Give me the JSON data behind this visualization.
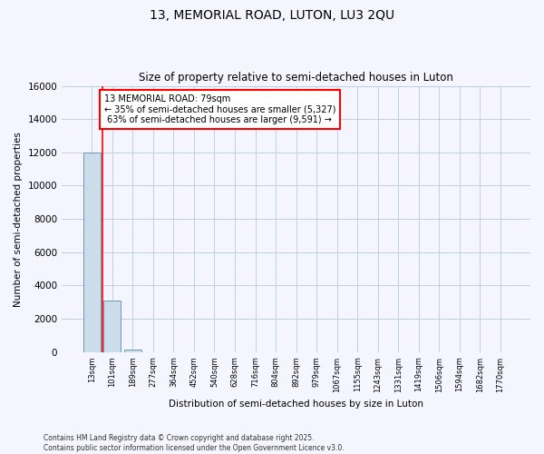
{
  "title": "13, MEMORIAL ROAD, LUTON, LU3 2QU",
  "subtitle": "Size of property relative to semi-detached houses in Luton",
  "xlabel": "Distribution of semi-detached houses by size in Luton",
  "ylabel": "Number of semi-detached properties",
  "categories": [
    "13sqm",
    "101sqm",
    "189sqm",
    "277sqm",
    "364sqm",
    "452sqm",
    "540sqm",
    "628sqm",
    "716sqm",
    "804sqm",
    "892sqm",
    "979sqm",
    "1067sqm",
    "1155sqm",
    "1243sqm",
    "1331sqm",
    "1419sqm",
    "1506sqm",
    "1594sqm",
    "1682sqm",
    "1770sqm"
  ],
  "values": [
    12000,
    3100,
    150,
    0,
    0,
    0,
    0,
    0,
    0,
    0,
    0,
    0,
    0,
    0,
    0,
    0,
    0,
    0,
    0,
    0,
    0
  ],
  "bar_color": "#ccdce8",
  "bar_edge_color": "#6699bb",
  "ylim": [
    0,
    16000
  ],
  "yticks": [
    0,
    2000,
    4000,
    6000,
    8000,
    10000,
    12000,
    14000,
    16000
  ],
  "property_name": "13 MEMORIAL ROAD: 79sqm",
  "property_smaller_pct": 35,
  "property_smaller_count": 5327,
  "property_larger_pct": 63,
  "property_larger_count": 9591,
  "red_line_x": 0.5,
  "footer": "Contains HM Land Registry data © Crown copyright and database right 2025.\nContains public sector information licensed under the Open Government Licence v3.0.",
  "bg_color": "#f5f5ff",
  "grid_color": "#c0cfe0"
}
